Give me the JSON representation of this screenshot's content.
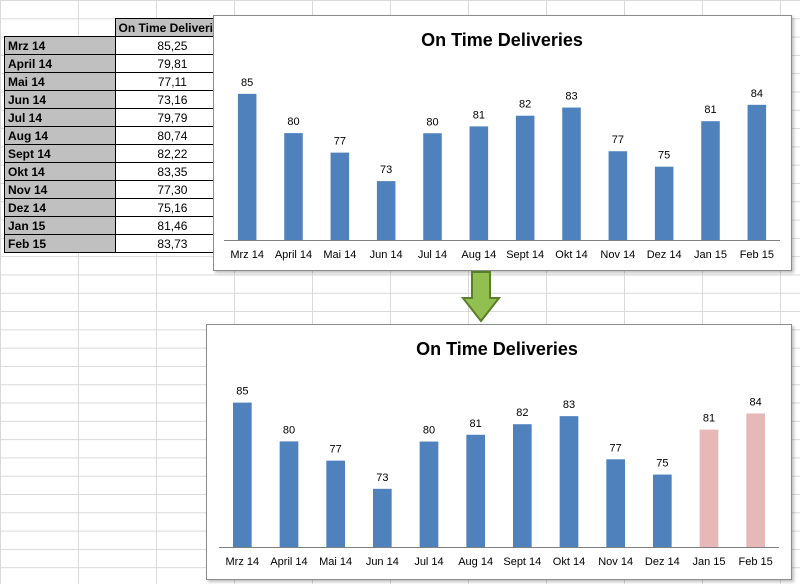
{
  "table": {
    "header": "On Time Deliveries",
    "rows": [
      {
        "label": "Mrz 14",
        "value": "85,25"
      },
      {
        "label": "April 14",
        "value": "79,81"
      },
      {
        "label": "Mai 14",
        "value": "77,11"
      },
      {
        "label": "Jun 14",
        "value": "73,16"
      },
      {
        "label": "Jul 14",
        "value": "79,79"
      },
      {
        "label": "Aug 14",
        "value": "80,74"
      },
      {
        "label": "Sept 14",
        "value": "82,22"
      },
      {
        "label": "Okt 14",
        "value": "83,35"
      },
      {
        "label": "Nov 14",
        "value": "77,30"
      },
      {
        "label": "Dez 14",
        "value": "75,16"
      },
      {
        "label": "Jan 15",
        "value": "81,46"
      },
      {
        "label": "Feb 15",
        "value": "83,73"
      }
    ]
  },
  "colors": {
    "bar": "#4f81bd",
    "highlight": "#e6b9b8",
    "arrow": "#92c050",
    "arrow_border": "#5a7f2a"
  },
  "chart_data": [
    {
      "type": "bar",
      "title": "On Time Deliveries",
      "categories": [
        "Mrz 14",
        "April 14",
        "Mai 14",
        "Jun 14",
        "Jul 14",
        "Aug 14",
        "Sept 14",
        "Okt 14",
        "Nov 14",
        "Dez 14",
        "Jan 15",
        "Feb 15"
      ],
      "values": [
        85.25,
        79.81,
        77.11,
        73.16,
        79.79,
        80.74,
        82.22,
        83.35,
        77.3,
        75.16,
        81.46,
        83.73
      ],
      "data_labels": [
        "85",
        "80",
        "77",
        "73",
        "80",
        "81",
        "82",
        "83",
        "77",
        "75",
        "81",
        "84"
      ],
      "bar_colors": [
        "#4f81bd",
        "#4f81bd",
        "#4f81bd",
        "#4f81bd",
        "#4f81bd",
        "#4f81bd",
        "#4f81bd",
        "#4f81bd",
        "#4f81bd",
        "#4f81bd",
        "#4f81bd",
        "#4f81bd"
      ],
      "ylim": [
        65,
        88
      ],
      "grid": false,
      "legend": "none"
    },
    {
      "type": "bar",
      "title": "On Time Deliveries",
      "categories": [
        "Mrz 14",
        "April 14",
        "Mai 14",
        "Jun 14",
        "Jul 14",
        "Aug 14",
        "Sept 14",
        "Okt 14",
        "Nov 14",
        "Dez 14",
        "Jan 15",
        "Feb 15"
      ],
      "values": [
        85.25,
        79.81,
        77.11,
        73.16,
        79.79,
        80.74,
        82.22,
        83.35,
        77.3,
        75.16,
        81.46,
        83.73
      ],
      "data_labels": [
        "85",
        "80",
        "77",
        "73",
        "80",
        "81",
        "82",
        "83",
        "77",
        "75",
        "81",
        "84"
      ],
      "bar_colors": [
        "#4f81bd",
        "#4f81bd",
        "#4f81bd",
        "#4f81bd",
        "#4f81bd",
        "#4f81bd",
        "#4f81bd",
        "#4f81bd",
        "#4f81bd",
        "#4f81bd",
        "#e6b9b8",
        "#e6b9b8"
      ],
      "ylim": [
        65,
        88
      ],
      "grid": false,
      "legend": "none"
    }
  ]
}
